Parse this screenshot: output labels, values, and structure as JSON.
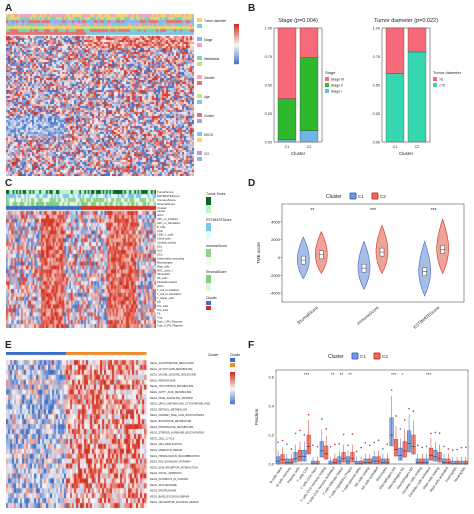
{
  "panels": {
    "A": {
      "label": "A"
    },
    "B": {
      "label": "B"
    },
    "C": {
      "label": "C"
    },
    "D": {
      "label": "D"
    },
    "E": {
      "label": "E"
    },
    "F": {
      "label": "F"
    }
  },
  "colors": {
    "red": "#d7301f",
    "blue": "#3b6cc7",
    "white": "#f7f7f7",
    "green": "#2eb82e",
    "pink": "#f76a7a",
    "teal": "#35d6b0",
    "lightblue": "#6fb6e8",
    "orange": "#f08a24",
    "lightgreen": "#9be36b"
  },
  "chart_data": [
    {
      "id": "B-stage",
      "type": "bar",
      "stacked": true,
      "title": "Stage (p=0.004)",
      "xlabel": "Cluster",
      "ylabel": "",
      "categories": [
        "C1",
        "C2"
      ],
      "ylim": [
        0,
        1
      ],
      "yticks": [
        "0.00",
        "0.25",
        "0.50",
        "0.75",
        "1.00"
      ],
      "legend_title": "Stage",
      "series": [
        {
          "name": "Stage I",
          "values": [
            0.02,
            0.1
          ],
          "color": "#6fb6e8"
        },
        {
          "name": "Stage II",
          "values": [
            0.36,
            0.64
          ],
          "color": "#2eb82e"
        },
        {
          "name": "Stage III",
          "values": [
            0.62,
            0.26
          ],
          "color": "#f76a7a"
        }
      ]
    },
    {
      "id": "B-tumor",
      "type": "bar",
      "stacked": true,
      "title": "Tumor diameter (p=0.022)",
      "xlabel": "Cluster",
      "ylabel": "",
      "categories": [
        "C1",
        "C2"
      ],
      "ylim": [
        0,
        1
      ],
      "yticks": [
        "0.00",
        "0.25",
        "0.50",
        "0.75",
        "1.00"
      ],
      "legend_title": "Tumor diameter",
      "series": [
        {
          "name": "<=5",
          "values": [
            0.6,
            0.79
          ],
          "color": "#35d6b0"
        },
        {
          "name": ">5",
          "values": [
            0.4,
            0.21
          ],
          "color": "#f76a7a"
        }
      ]
    },
    {
      "id": "D",
      "type": "violin",
      "xlabel": "",
      "ylabel": "TME score",
      "legend_title": "Cluster",
      "categories": [
        "StromalScore",
        "ImmuneScore",
        "ESTIMATEScore"
      ],
      "significance": [
        "**",
        "***",
        "***"
      ],
      "ylim": [
        -5000,
        6000
      ],
      "yticks": [
        -4000,
        -2000,
        0,
        2000,
        4000
      ],
      "series": [
        {
          "name": "C1",
          "color": "#3b6cc7",
          "medians": [
            -300,
            -1200,
            -1600
          ]
        },
        {
          "name": "C2",
          "color": "#d7301f",
          "medians": [
            300,
            600,
            900
          ]
        }
      ]
    },
    {
      "id": "F",
      "type": "box",
      "ylabel": "Fraction",
      "legend_title": "Cluster",
      "ylim": [
        0,
        0.65
      ],
      "yticks": [
        "0.0",
        "0.2",
        "0.4",
        "0.6"
      ],
      "categories": [
        "B cells naive",
        "B cells memory",
        "Plasma cells",
        "T cells CD8",
        "T cells CD4 naive",
        "T cells CD4 memory resting",
        "T cells CD4 memory activated",
        "T cells follicular helper",
        "T cells regulatory (Tregs)",
        "T cells gamma delta",
        "NK cells resting",
        "NK cells activated",
        "Monocytes",
        "Macrophages M0",
        "Macrophages M1",
        "Macrophages M2",
        "Dendritic cells resting",
        "Dendritic cells activated",
        "Mast cells resting",
        "Mast cells activated",
        "Eosinophils",
        "Neutrophils"
      ],
      "significance": [
        "",
        "",
        "",
        "***",
        "",
        "",
        "**",
        "**",
        "**",
        "",
        "",
        "",
        "",
        "***",
        "*",
        "",
        "",
        "***",
        "",
        "",
        "",
        ""
      ],
      "series": [
        {
          "name": "C1",
          "color": "#3b6cc7",
          "medians": [
            0.02,
            0.01,
            0.04,
            0.05,
            0.0,
            0.09,
            0.0,
            0.02,
            0.02,
            0.0,
            0.01,
            0.02,
            0.01,
            0.2,
            0.06,
            0.14,
            0.01,
            0.01,
            0.05,
            0.01,
            0.0,
            0.0
          ]
        },
        {
          "name": "C2",
          "color": "#d7301f",
          "medians": [
            0.03,
            0.01,
            0.05,
            0.12,
            0.0,
            0.07,
            0.01,
            0.04,
            0.04,
            0.0,
            0.01,
            0.02,
            0.01,
            0.1,
            0.09,
            0.12,
            0.01,
            0.06,
            0.04,
            0.01,
            0.0,
            0.0
          ]
        }
      ]
    }
  ],
  "heatmapA": {
    "legend": [
      "Tumor diameter",
      "Stage",
      "Metastasis",
      "Gender",
      "Age",
      "Cluster",
      "KEGG",
      "GO"
    ]
  },
  "heatmapC": {
    "annotations": [
      "TumorScore",
      "ESTIMATEScore",
      "ImmuneScore",
      "StromalScore",
      "Cluster"
    ],
    "rows": [
      "Cluster",
      "aDCs",
      "APC_co_inhibition",
      "APC_co_stimulation",
      "B_cells",
      "CCR",
      "CD8+_T_cells",
      "Check-point",
      "Cytolytic_activity",
      "DCs",
      "HLA",
      "iDCs",
      "Inflammation-promoting",
      "Macrophages",
      "Mast_cells",
      "MHC_class_I",
      "Neutrophils",
      "NK_cells",
      "Parainflammation",
      "pDCs",
      "T_cell_co-inhibition",
      "T_cell_co-stimulation",
      "T_helper_cells",
      "Tfh",
      "Th1_cells",
      "Th2_cells",
      "TIL",
      "Treg",
      "Type_I_IFN_Reponse",
      "Type_II_IFN_Reponse"
    ],
    "legend_titles": [
      "Tumor Score",
      "ESTIMATEScore",
      "ImmuneScore",
      "StromalScore",
      "Cluster"
    ]
  },
  "heatmapE": {
    "annotation": "Cluster",
    "rows": [
      "KEGG_ALDOSTERONE_REGULATED",
      "KEGG_GLYOXYLATE_METABOLISM",
      "KEGG_VALINE_LEUCINE_ISOLEUCINE",
      "KEGG_PEROXISOME",
      "KEGG_TRYPTOPHAN_METABOLISM",
      "KEGG_FATTY_ACID_METABOLISM",
      "KEGG_PPAR_SIGNALING_PATHWAY",
      "KEGG_DRUG_METABOLISM_CYTOCHROME_P450",
      "KEGG_RETINOL_METABOLISM",
      "KEGG_PRIMARY_BILE_ACID_BIOSYNTHESIS",
      "KEGG_BUTANOATE_METABOLISM",
      "KEGG_PROPANOATE_METABOLISM",
      "KEGG_STEROID_HORMONE_BIOSYNTHESIS",
      "KEGG_CELL_CYCLE",
      "KEGG_DNA_REPLICATION",
      "KEGG_MISMATCH_REPAIR",
      "KEGG_HOMOLOGOUS_RECOMBINATION",
      "KEGG_P53_SIGNALING_PATHWAY",
      "KEGG_ECM_RECEPTOR_INTERACTION",
      "KEGG_FOCAL_ADHESION",
      "KEGG_PATHWAYS_IN_CANCER",
      "KEGG_SPLICEOSOME",
      "KEGG_PROTEASOME",
      "KEGG_BASE_EXCISION_REPAIR",
      "KEGG_NUCLEOTIDE_EXCISION_REPAIR"
    ],
    "legend_title": "Cluster"
  }
}
